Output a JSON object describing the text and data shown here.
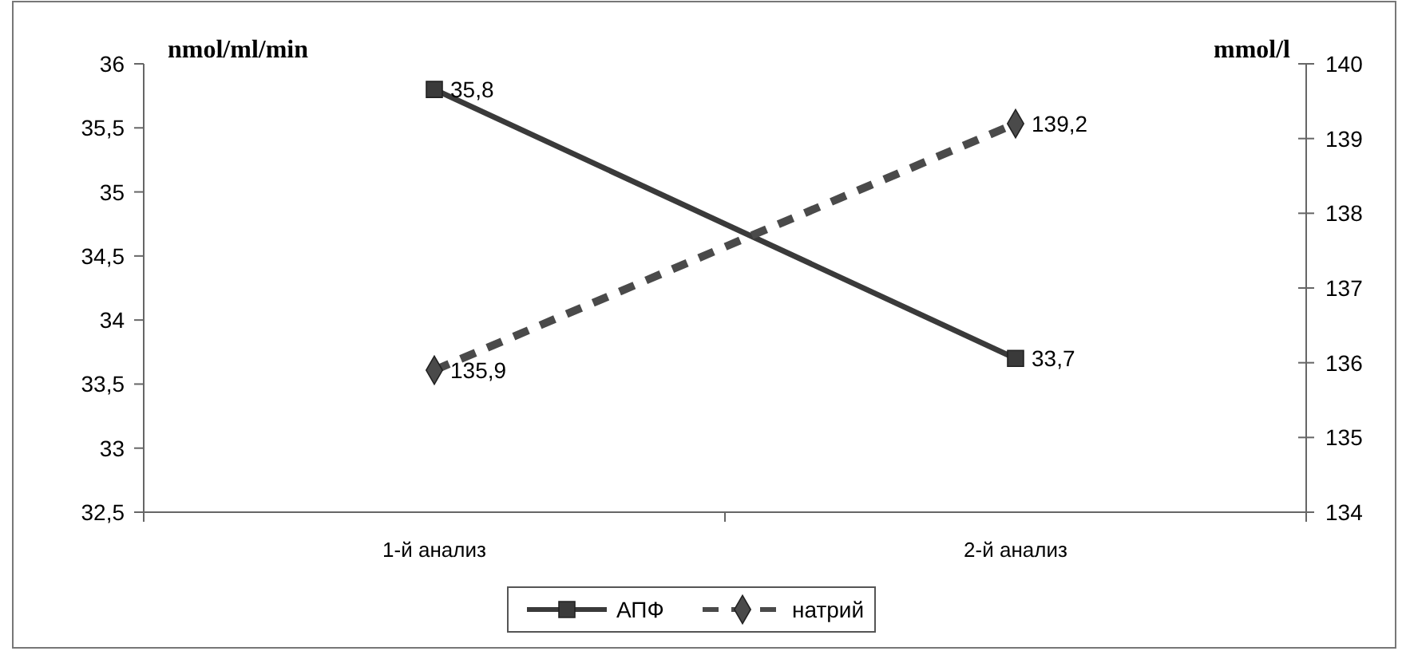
{
  "chart_data": {
    "type": "line",
    "categories": [
      "1-й анализ",
      "2-й анализ"
    ],
    "ylabel": "nmol/ml/min",
    "y2label": "mmol/l",
    "ylim": [
      32.5,
      36
    ],
    "yticks": [
      {
        "value": 32.5,
        "label": "32,5"
      },
      {
        "value": 33,
        "label": "33"
      },
      {
        "value": 33.5,
        "label": "33,5"
      },
      {
        "value": 34,
        "label": "34"
      },
      {
        "value": 34.5,
        "label": "34,5"
      },
      {
        "value": 35,
        "label": "35"
      },
      {
        "value": 35.5,
        "label": "35,5"
      },
      {
        "value": 36,
        "label": "36"
      }
    ],
    "y2lim": [
      134,
      140
    ],
    "y2ticks": [
      134,
      135,
      136,
      137,
      138,
      139,
      140
    ],
    "series": [
      {
        "name": "АПФ",
        "color": "#3a3a3a",
        "values": [
          35.8,
          33.7
        ],
        "value_labels": [
          "35,8",
          "33,7"
        ],
        "marker": "square",
        "line_style": "solid"
      },
      {
        "name": "натрий",
        "color": "#4a4a4a",
        "values": [
          135.9,
          139.2
        ],
        "value_labels": [
          "135,9",
          "139,2"
        ],
        "marker": "diamond",
        "line_style": "dashed",
        "axis": "y2"
      }
    ],
    "grid": false,
    "legend": "bottom"
  }
}
